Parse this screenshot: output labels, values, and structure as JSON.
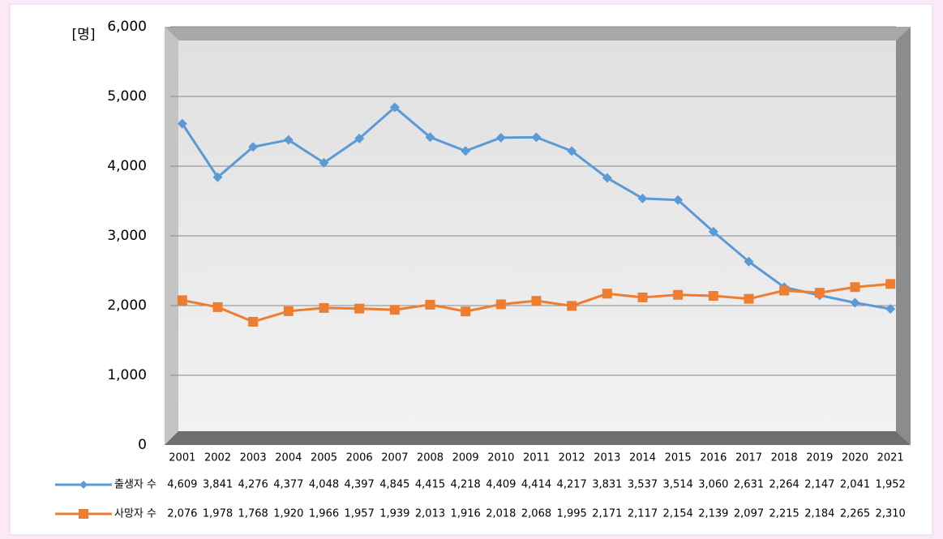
{
  "chart_data": {
    "type": "line",
    "y_label": "[명]",
    "categories": [
      "2001",
      "2002",
      "2003",
      "2004",
      "2005",
      "2006",
      "2007",
      "2008",
      "2009",
      "2010",
      "2011",
      "2012",
      "2013",
      "2014",
      "2015",
      "2016",
      "2017",
      "2018",
      "2019",
      "2020",
      "2021"
    ],
    "series": [
      {
        "name": "출생자 수",
        "color": "#5b9bd5",
        "marker": "diamond",
        "values": [
          4609,
          3841,
          4276,
          4377,
          4048,
          4397,
          4845,
          4415,
          4218,
          4409,
          4414,
          4217,
          3831,
          3537,
          3514,
          3060,
          2631,
          2264,
          2147,
          2041,
          1952
        ],
        "value_labels": [
          "4,609",
          "3,841",
          "4,276",
          "4,377",
          "4,048",
          "4,397",
          "4,845",
          "4,415",
          "4,218",
          "4,409",
          "4,414",
          "4,217",
          "3,831",
          "3,537",
          "3,514",
          "3,060",
          "2,631",
          "2,264",
          "2,147",
          "2,041",
          "1,952"
        ]
      },
      {
        "name": "사망자 수",
        "color": "#ed7d31",
        "marker": "square",
        "values": [
          2076,
          1978,
          1768,
          1920,
          1966,
          1957,
          1939,
          2013,
          1916,
          2018,
          2068,
          1995,
          2171,
          2117,
          2154,
          2139,
          2097,
          2215,
          2184,
          2265,
          2310
        ],
        "value_labels": [
          "2,076",
          "1,978",
          "1,768",
          "1,920",
          "1,966",
          "1,957",
          "1,939",
          "2,013",
          "1,916",
          "2,018",
          "2,068",
          "1,995",
          "2,171",
          "2,117",
          "2,154",
          "2,139",
          "2,097",
          "2,215",
          "2,184",
          "2,265",
          "2,310"
        ]
      }
    ],
    "ylim": [
      0,
      6000
    ],
    "yticks": [
      0,
      {
        "value": 1000,
        "label": "1,000"
      },
      {
        "value": 2000,
        "label": "2,000"
      },
      {
        "value": 3000,
        "label": "3,000"
      },
      {
        "value": 4000,
        "label": "4,000"
      },
      {
        "value": 5000,
        "label": "5,000"
      },
      {
        "value": 6000,
        "label": "6,000"
      }
    ],
    "grid": true,
    "data_table": true
  }
}
